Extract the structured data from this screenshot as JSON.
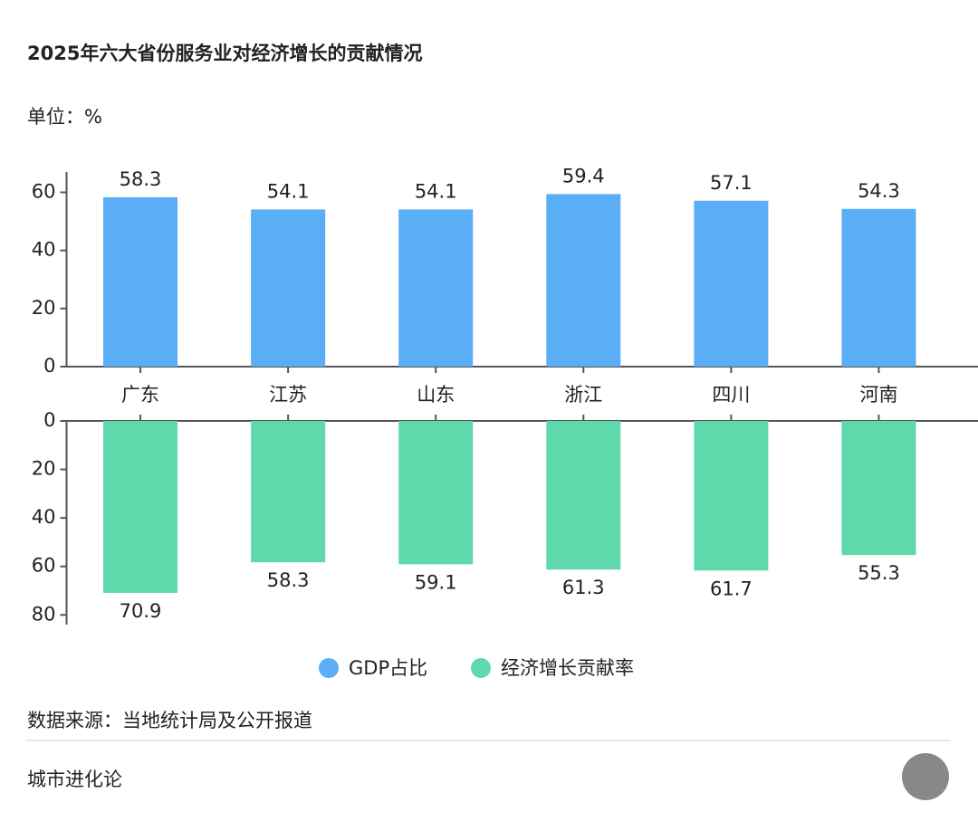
{
  "chart_data": {
    "type": "bar",
    "title": "2025年六大省份服务业对经济增长的贡献情况",
    "unit": "单位：%",
    "categories": [
      "广东",
      "江苏",
      "山东",
      "浙江",
      "四川",
      "河南"
    ],
    "series": [
      {
        "name": "GDP占比",
        "color": "#5aaef5",
        "values": [
          58.3,
          54.1,
          54.1,
          59.4,
          57.1,
          54.3
        ]
      },
      {
        "name": "经济增长贡献率",
        "color": "#5fd9ac",
        "axis": "y2",
        "values": [
          70.9,
          58.3,
          59.1,
          61.3,
          61.7,
          55.3
        ]
      }
    ],
    "ylim": [
      0,
      67
    ],
    "yticks": [
      0,
      20,
      40,
      60
    ],
    "y2lim": [
      0,
      84
    ],
    "y2ticks": [
      0,
      20,
      40,
      60,
      80
    ],
    "y2_inverted": true,
    "source": "数据来源：当地统计局及公开报道",
    "footer": "城市进化论"
  }
}
